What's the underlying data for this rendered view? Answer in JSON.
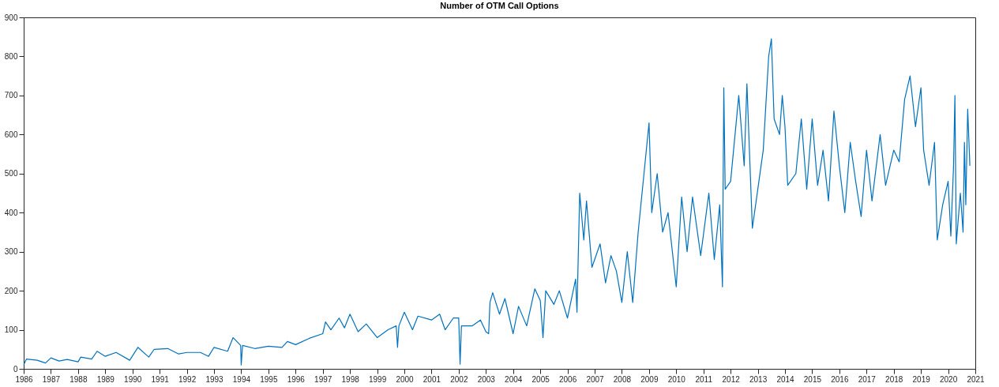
{
  "chart_data": {
    "type": "line",
    "title": "Number of OTM Call Options",
    "grid": false,
    "line_style": "solid",
    "marker": "none",
    "xlim": [
      1986,
      2021
    ],
    "xticks": [
      1986,
      1987,
      1988,
      1989,
      1990,
      1991,
      1992,
      1993,
      1994,
      1995,
      1996,
      1997,
      1998,
      1999,
      2000,
      2001,
      2002,
      2003,
      2004,
      2005,
      2006,
      2007,
      2008,
      2009,
      2010,
      2011,
      2012,
      2013,
      2014,
      2015,
      2016,
      2017,
      2018,
      2019,
      2020,
      2021
    ],
    "ylim": [
      0,
      900
    ],
    "yticks": [
      0,
      100,
      200,
      300,
      400,
      500,
      600,
      700,
      800,
      900
    ],
    "series": [
      {
        "color": "#0072bd",
        "x": [
          1986.0,
          1986.1,
          1986.5,
          1986.8,
          1987.0,
          1987.3,
          1987.6,
          1988.0,
          1988.1,
          1988.5,
          1988.7,
          1989.0,
          1989.4,
          1989.9,
          1990.2,
          1990.6,
          1990.8,
          1991.3,
          1991.7,
          1992.0,
          1992.5,
          1992.8,
          1993.0,
          1993.5,
          1993.7,
          1993.98,
          1994.0,
          1994.05,
          1994.5,
          1995.0,
          1995.5,
          1995.7,
          1996.0,
          1996.5,
          1997.0,
          1997.1,
          1997.3,
          1997.6,
          1997.8,
          1998.0,
          1998.3,
          1998.6,
          1999.0,
          1999.4,
          1999.7,
          1999.75,
          1999.8,
          2000.0,
          2000.3,
          2000.5,
          2001.0,
          2001.3,
          2001.5,
          2001.8,
          2002.0,
          2002.05,
          2002.1,
          2002.5,
          2002.8,
          2003.0,
          2003.1,
          2003.15,
          2003.25,
          2003.5,
          2003.7,
          2004.0,
          2004.2,
          2004.5,
          2004.8,
          2005.0,
          2005.1,
          2005.2,
          2005.5,
          2005.7,
          2006.0,
          2006.3,
          2006.35,
          2006.45,
          2006.6,
          2006.7,
          2006.9,
          2007.2,
          2007.4,
          2007.6,
          2007.8,
          2008.0,
          2008.2,
          2008.4,
          2008.6,
          2008.8,
          2009.0,
          2009.1,
          2009.3,
          2009.5,
          2009.7,
          2010.0,
          2010.2,
          2010.4,
          2010.6,
          2010.9,
          2011.2,
          2011.4,
          2011.6,
          2011.7,
          2011.75,
          2011.8,
          2012.0,
          2012.3,
          2012.5,
          2012.6,
          2012.8,
          2013.0,
          2013.2,
          2013.4,
          2013.5,
          2013.6,
          2013.8,
          2013.9,
          2014.0,
          2014.1,
          2014.4,
          2014.6,
          2014.8,
          2015.0,
          2015.2,
          2015.4,
          2015.6,
          2015.8,
          2016.0,
          2016.2,
          2016.4,
          2016.6,
          2016.8,
          2017.0,
          2017.2,
          2017.5,
          2017.7,
          2018.0,
          2018.2,
          2018.4,
          2018.6,
          2018.8,
          2019.0,
          2019.1,
          2019.3,
          2019.5,
          2019.6,
          2019.8,
          2020.0,
          2020.1,
          2020.2,
          2020.25,
          2020.3,
          2020.45,
          2020.55,
          2020.6,
          2020.65,
          2020.72,
          2020.8
        ],
        "values": [
          10,
          25,
          22,
          15,
          28,
          20,
          24,
          18,
          30,
          25,
          45,
          32,
          42,
          22,
          55,
          30,
          50,
          52,
          38,
          42,
          42,
          32,
          55,
          45,
          80,
          60,
          10,
          60,
          52,
          58,
          55,
          70,
          62,
          78,
          90,
          120,
          100,
          130,
          105,
          140,
          95,
          115,
          80,
          100,
          110,
          55,
          110,
          145,
          100,
          135,
          125,
          140,
          100,
          130,
          130,
          12,
          110,
          110,
          125,
          95,
          90,
          170,
          195,
          140,
          180,
          90,
          160,
          110,
          205,
          175,
          80,
          200,
          165,
          200,
          130,
          230,
          145,
          450,
          330,
          430,
          260,
          320,
          220,
          290,
          250,
          170,
          300,
          170,
          350,
          490,
          630,
          400,
          500,
          350,
          400,
          210,
          440,
          300,
          440,
          290,
          450,
          280,
          420,
          210,
          720,
          460,
          480,
          700,
          520,
          730,
          360,
          460,
          560,
          800,
          845,
          640,
          600,
          700,
          620,
          470,
          500,
          640,
          460,
          640,
          470,
          560,
          430,
          660,
          520,
          400,
          580,
          480,
          390,
          560,
          430,
          600,
          470,
          560,
          530,
          690,
          750,
          620,
          720,
          560,
          470,
          580,
          330,
          420,
          480,
          340,
          520,
          700,
          320,
          450,
          350,
          580,
          420,
          665,
          520
        ]
      }
    ]
  }
}
